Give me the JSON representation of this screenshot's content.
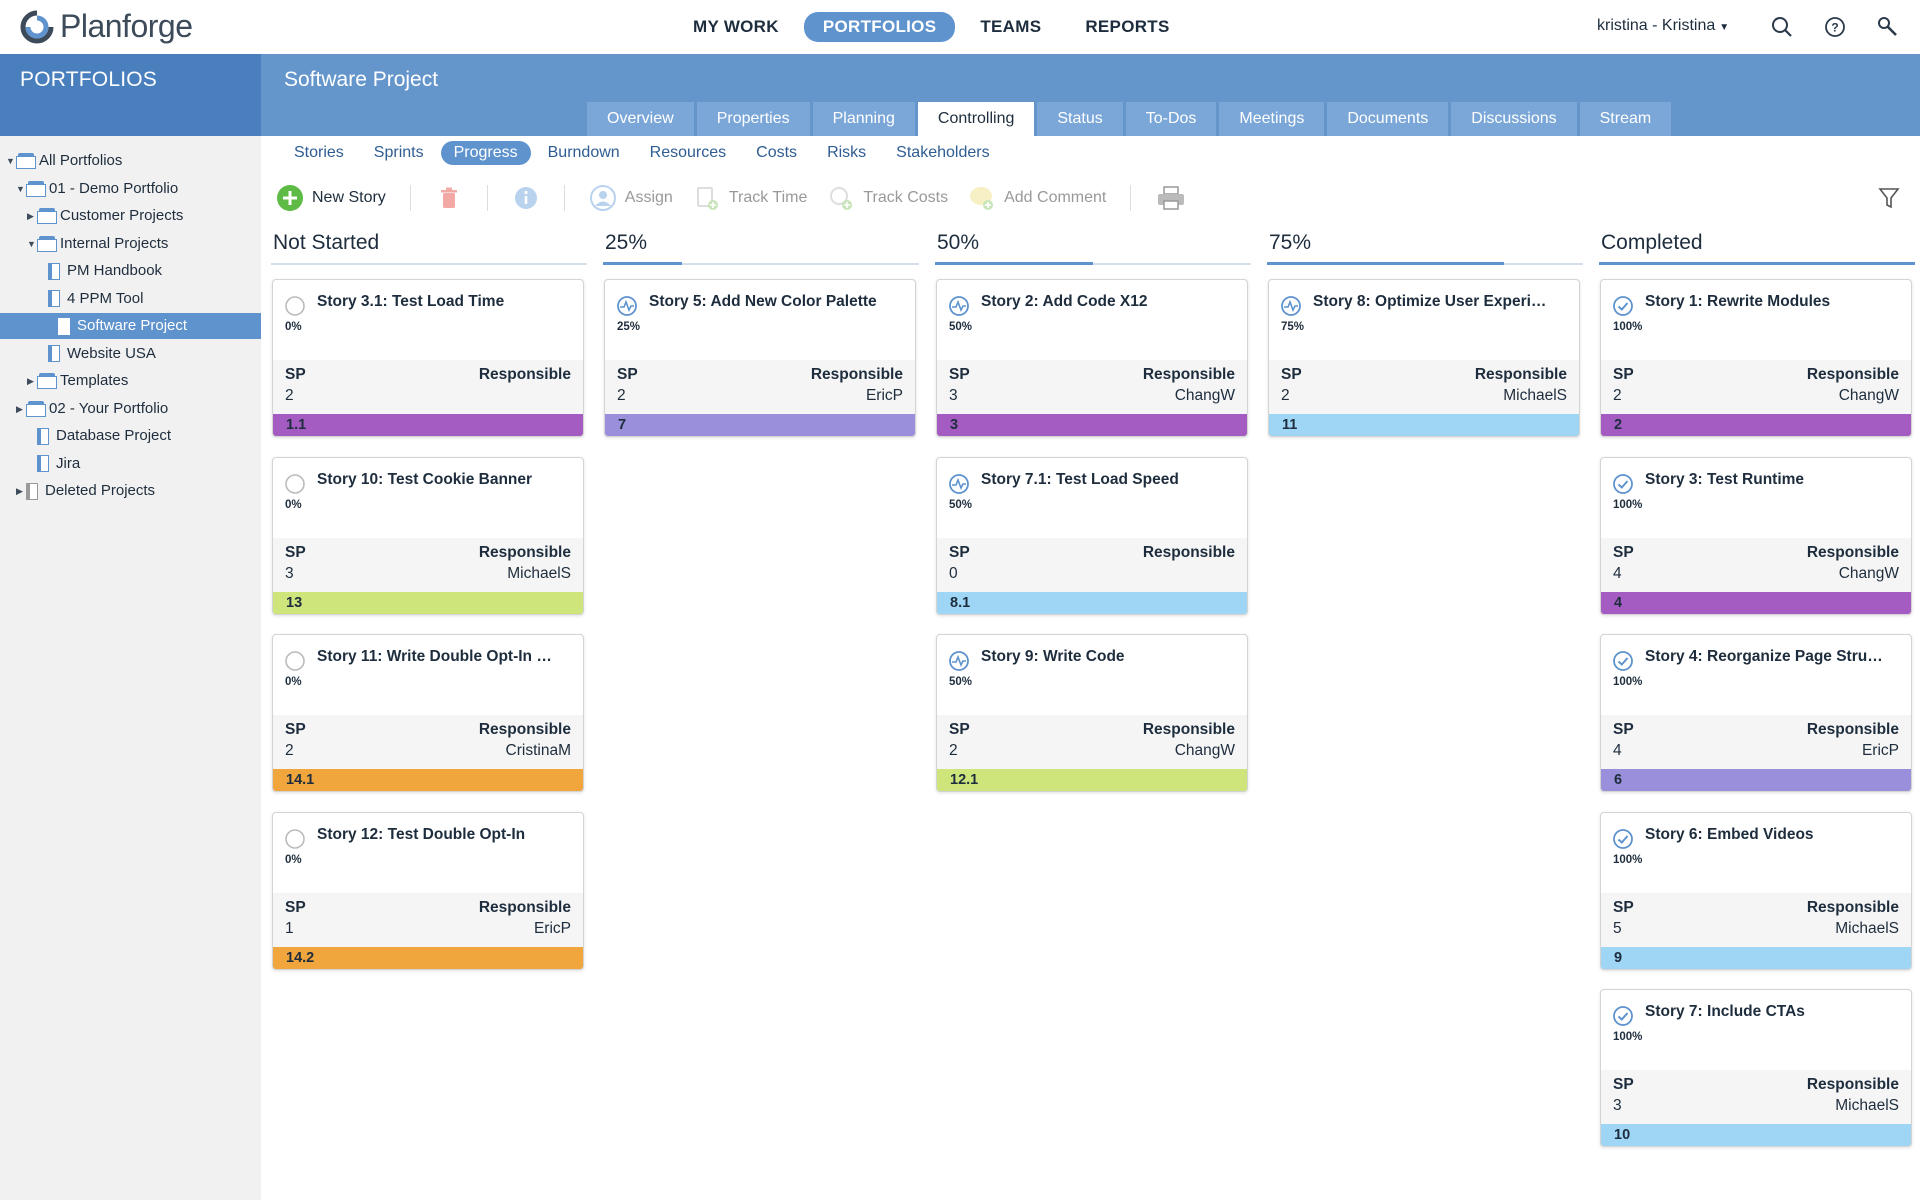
{
  "app": {
    "name": "Planforge"
  },
  "topnav": [
    {
      "label": "MY WORK",
      "active": false
    },
    {
      "label": "PORTFOLIOS",
      "active": true
    },
    {
      "label": "TEAMS",
      "active": false
    },
    {
      "label": "REPORTS",
      "active": false
    }
  ],
  "user": {
    "label": "kristina - Kristina"
  },
  "sidebar": {
    "title": "PORTFOLIOS",
    "tree": [
      {
        "label": "All Portfolios",
        "type": "folder",
        "level": 0,
        "arrow": "▼",
        "selected": false
      },
      {
        "label": "01 - Demo Portfolio",
        "type": "folder",
        "level": 1,
        "arrow": "▼",
        "selected": false
      },
      {
        "label": "Customer Projects",
        "type": "folder",
        "level": 2,
        "arrow": "▶",
        "selected": false
      },
      {
        "label": "Internal Projects",
        "type": "folder",
        "level": 2,
        "arrow": "▼",
        "selected": false
      },
      {
        "label": "PM Handbook",
        "type": "doc",
        "level": 3,
        "arrow": "",
        "selected": false
      },
      {
        "label": "4 PPM Tool",
        "type": "doc",
        "level": 3,
        "arrow": "",
        "selected": false
      },
      {
        "label": "Software Project",
        "type": "doc",
        "level": 3,
        "arrow": "",
        "selected": true
      },
      {
        "label": "Website USA",
        "type": "doc",
        "level": 3,
        "arrow": "",
        "selected": false
      },
      {
        "label": "Templates",
        "type": "folder",
        "level": 2,
        "arrow": "▶",
        "selected": false
      },
      {
        "label": "02 - Your Portfolio",
        "type": "folder",
        "level": 1,
        "arrow": "▶",
        "selected": false
      },
      {
        "label": "Database Project",
        "type": "doc",
        "level": 2,
        "arrow": "",
        "selected": false
      },
      {
        "label": "Jira",
        "type": "doc",
        "level": 2,
        "arrow": "",
        "selected": false
      },
      {
        "label": "Deleted Projects",
        "type": "trash",
        "level": 1,
        "arrow": "▶",
        "selected": false
      }
    ]
  },
  "project": {
    "title": "Software Project"
  },
  "tabs": [
    {
      "label": "Overview",
      "active": false
    },
    {
      "label": "Properties",
      "active": false
    },
    {
      "label": "Planning",
      "active": false
    },
    {
      "label": "Controlling",
      "active": true
    },
    {
      "label": "Status",
      "active": false
    },
    {
      "label": "To-Dos",
      "active": false
    },
    {
      "label": "Meetings",
      "active": false
    },
    {
      "label": "Documents",
      "active": false
    },
    {
      "label": "Discussions",
      "active": false
    },
    {
      "label": "Stream",
      "active": false
    }
  ],
  "subtabs": [
    {
      "label": "Stories",
      "active": false
    },
    {
      "label": "Sprints",
      "active": false
    },
    {
      "label": "Progress",
      "active": true
    },
    {
      "label": "Burndown",
      "active": false
    },
    {
      "label": "Resources",
      "active": false
    },
    {
      "label": "Costs",
      "active": false
    },
    {
      "label": "Risks",
      "active": false
    },
    {
      "label": "Stakeholders",
      "active": false
    }
  ],
  "toolbar": {
    "new_story": "New Story",
    "assign": "Assign",
    "track_time": "Track Time",
    "track_costs": "Track Costs",
    "add_comment": "Add Comment"
  },
  "labels": {
    "sp": "SP",
    "responsible": "Responsible"
  },
  "colors": {
    "accent": "#5e93ce",
    "purple": "#a45cc3",
    "lavender": "#9a8fdb",
    "lightblue": "#9fd6f5",
    "lime": "#cde57a",
    "orange": "#f0a63c"
  },
  "columns": [
    {
      "title": "Not Started",
      "progress": 0,
      "cards": [
        {
          "title": "Story 3.1: Test Load Time",
          "percent": "0%",
          "status": "not-started",
          "sp": "2",
          "responsible": "",
          "sprint": "1.1",
          "color": "purple"
        },
        {
          "title": "Story 10: Test Cookie Banner",
          "percent": "0%",
          "status": "not-started",
          "sp": "3",
          "responsible": "MichaelS",
          "sprint": "13",
          "color": "lime"
        },
        {
          "title": "Story 11: Write Double Opt-In …",
          "percent": "0%",
          "status": "not-started",
          "sp": "2",
          "responsible": "CristinaM",
          "sprint": "14.1",
          "color": "orange"
        },
        {
          "title": "Story 12: Test Double Opt-In",
          "percent": "0%",
          "status": "not-started",
          "sp": "1",
          "responsible": "EricP",
          "sprint": "14.2",
          "color": "orange"
        }
      ]
    },
    {
      "title": "25%",
      "progress": 0.25,
      "cards": [
        {
          "title": "Story 5: Add New Color Palette",
          "percent": "25%",
          "status": "in-progress",
          "sp": "2",
          "responsible": "EricP",
          "sprint": "7",
          "color": "lavender"
        }
      ]
    },
    {
      "title": "50%",
      "progress": 0.5,
      "cards": [
        {
          "title": "Story 2: Add Code X12",
          "percent": "50%",
          "status": "in-progress",
          "sp": "3",
          "responsible": "ChangW",
          "sprint": "3",
          "color": "purple"
        },
        {
          "title": "Story 7.1: Test Load Speed",
          "percent": "50%",
          "status": "in-progress",
          "sp": "0",
          "responsible": "",
          "sprint": "8.1",
          "color": "lightblue"
        },
        {
          "title": "Story 9: Write Code",
          "percent": "50%",
          "status": "in-progress",
          "sp": "2",
          "responsible": "ChangW",
          "sprint": "12.1",
          "color": "lime"
        }
      ]
    },
    {
      "title": "75%",
      "progress": 0.75,
      "cards": [
        {
          "title": "Story 8: Optimize User Experi…",
          "percent": "75%",
          "status": "in-progress",
          "sp": "2",
          "responsible": "MichaelS",
          "sprint": "11",
          "color": "lightblue"
        }
      ]
    },
    {
      "title": "Completed",
      "progress": 1,
      "cards": [
        {
          "title": "Story 1: Rewrite Modules",
          "percent": "100%",
          "status": "done",
          "sp": "2",
          "responsible": "ChangW",
          "sprint": "2",
          "color": "purple"
        },
        {
          "title": "Story 3: Test Runtime",
          "percent": "100%",
          "status": "done",
          "sp": "4",
          "responsible": "ChangW",
          "sprint": "4",
          "color": "purple"
        },
        {
          "title": "Story 4: Reorganize Page Stru…",
          "percent": "100%",
          "status": "done",
          "sp": "4",
          "responsible": "EricP",
          "sprint": "6",
          "color": "lavender"
        },
        {
          "title": "Story 6: Embed Videos",
          "percent": "100%",
          "status": "done",
          "sp": "5",
          "responsible": "MichaelS",
          "sprint": "9",
          "color": "lightblue"
        },
        {
          "title": "Story 7: Include CTAs",
          "percent": "100%",
          "status": "done",
          "sp": "3",
          "responsible": "MichaelS",
          "sprint": "10",
          "color": "lightblue"
        }
      ]
    }
  ]
}
